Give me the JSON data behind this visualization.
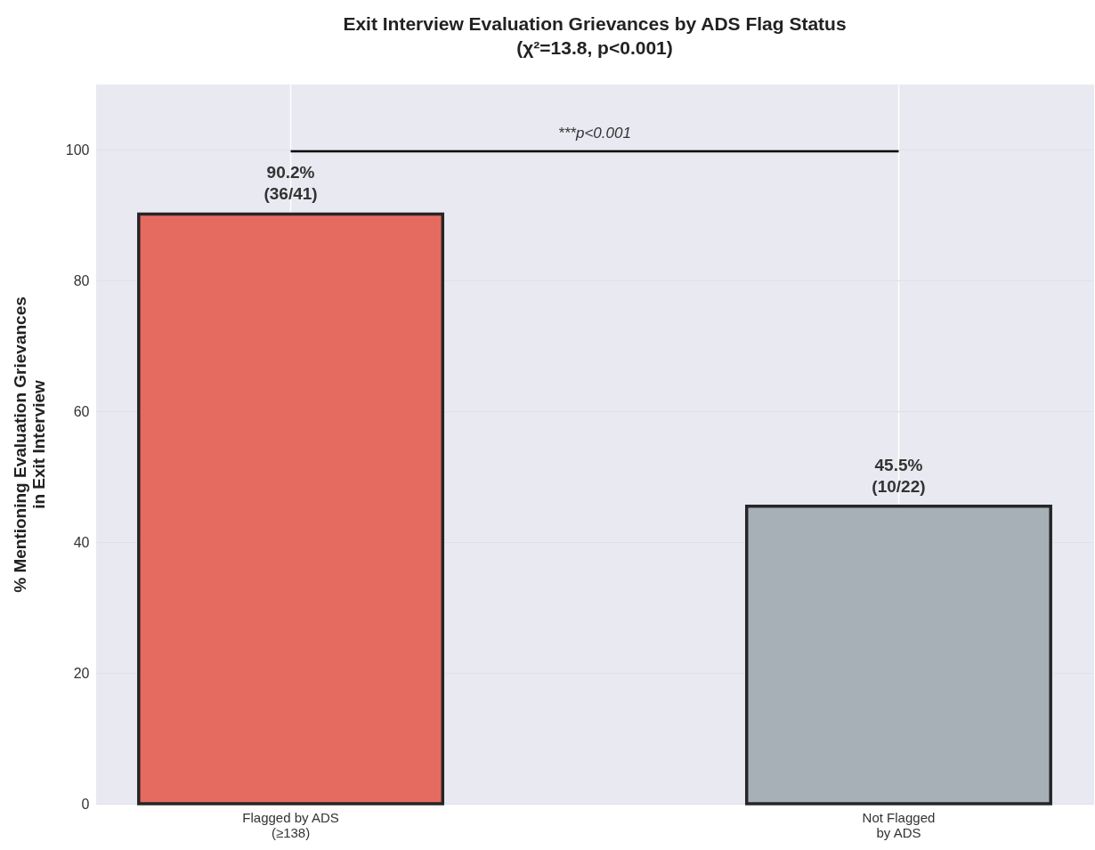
{
  "chart_data": {
    "type": "bar",
    "title": [
      "Exit Interview Evaluation Grievances by ADS Flag Status",
      "(χ²=13.8, p<0.001)"
    ],
    "ylabel": [
      "% Mentioning Evaluation Grievances",
      "in Exit Interview"
    ],
    "categories": [
      [
        "Flagged by ADS",
        "(≥138)"
      ],
      [
        "Not Flagged",
        "by ADS"
      ]
    ],
    "values": [
      90.2,
      45.5
    ],
    "colors": [
      "#e56b61",
      "#a7b0b7"
    ],
    "value_labels": [
      [
        "90.2%",
        "(36/41)"
      ],
      [
        "45.5%",
        "(10/22)"
      ]
    ],
    "annotations": [
      "***p<0.001"
    ],
    "ylim": [
      0,
      110
    ],
    "yticks": [
      0,
      20,
      40,
      60,
      80,
      100
    ],
    "grid": true
  }
}
